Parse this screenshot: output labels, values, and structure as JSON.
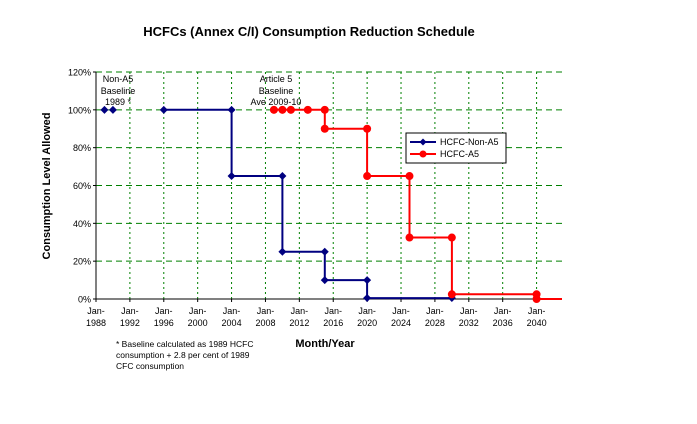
{
  "chart_data": {
    "type": "line",
    "title": "HCFCs (Annex C/I) Consumption Reduction Schedule",
    "xlabel": "Month/Year",
    "ylabel": "Consumption Level Allowed",
    "ylim": [
      0,
      120
    ],
    "y_ticks": [
      0,
      20,
      40,
      60,
      80,
      100,
      120
    ],
    "y_tick_labels": [
      "0%",
      "20%",
      "40%",
      "60%",
      "80%",
      "100%",
      "120%"
    ],
    "xlim": [
      1988,
      2043
    ],
    "x_ticks": [
      1988,
      1992,
      1996,
      2000,
      2004,
      2008,
      2012,
      2016,
      2020,
      2024,
      2028,
      2032,
      2036,
      2040
    ],
    "x_tick_top": "Jan-",
    "x_tick_labels": [
      "1988",
      "1992",
      "1996",
      "2000",
      "2004",
      "2008",
      "2012",
      "2016",
      "2020",
      "2024",
      "2028",
      "2032",
      "2036",
      "2040"
    ],
    "grid": true,
    "legend_position": "right",
    "series": [
      {
        "name": "HCFC-Non-A5",
        "color": "#000080",
        "marker": "diamond",
        "markers": [
          [
            1989,
            100
          ],
          [
            1990,
            100
          ],
          [
            1996,
            100
          ],
          [
            2004,
            100
          ],
          [
            2004,
            65
          ],
          [
            2010,
            65
          ],
          [
            2010,
            25
          ],
          [
            2015,
            25
          ],
          [
            2015,
            10
          ],
          [
            2020,
            10
          ],
          [
            2020,
            0.5
          ],
          [
            2030,
            0.5
          ]
        ],
        "path": [
          [
            1996,
            100
          ],
          [
            2004,
            100
          ],
          [
            2004,
            65
          ],
          [
            2010,
            65
          ],
          [
            2010,
            25
          ],
          [
            2015,
            25
          ],
          [
            2015,
            10
          ],
          [
            2020,
            10
          ],
          [
            2020,
            0.5
          ],
          [
            2030,
            0.5
          ]
        ]
      },
      {
        "name": "HCFC-A5",
        "color": "#ff0000",
        "marker": "circle",
        "markers": [
          [
            2009,
            100
          ],
          [
            2010,
            100
          ],
          [
            2011,
            100
          ],
          [
            2013,
            100
          ],
          [
            2015,
            100
          ],
          [
            2015,
            90
          ],
          [
            2020,
            90
          ],
          [
            2020,
            65
          ],
          [
            2025,
            65
          ],
          [
            2025,
            32.5
          ],
          [
            2030,
            32.5
          ],
          [
            2030,
            2.5
          ],
          [
            2040,
            2.5
          ],
          [
            2040,
            0
          ]
        ],
        "path": [
          [
            2009,
            100
          ],
          [
            2011,
            100
          ],
          [
            2013,
            100
          ],
          [
            2015,
            100
          ],
          [
            2015,
            90
          ],
          [
            2020,
            90
          ],
          [
            2020,
            65
          ],
          [
            2025,
            65
          ],
          [
            2025,
            32.5
          ],
          [
            2030,
            32.5
          ],
          [
            2030,
            2.5
          ],
          [
            2040,
            2.5
          ],
          [
            2040,
            0
          ],
          [
            2043,
            0
          ]
        ]
      }
    ],
    "annotations": {
      "non_a5": [
        "Non-A5",
        "Baseline",
        "1989 *"
      ],
      "article5": [
        "Article 5",
        "Baseline",
        "Ave 2009-10"
      ]
    },
    "footnote": "* Baseline calculated as 1989 HCFC consumption + 2.8 per cent of 1989 CFC consumption"
  }
}
